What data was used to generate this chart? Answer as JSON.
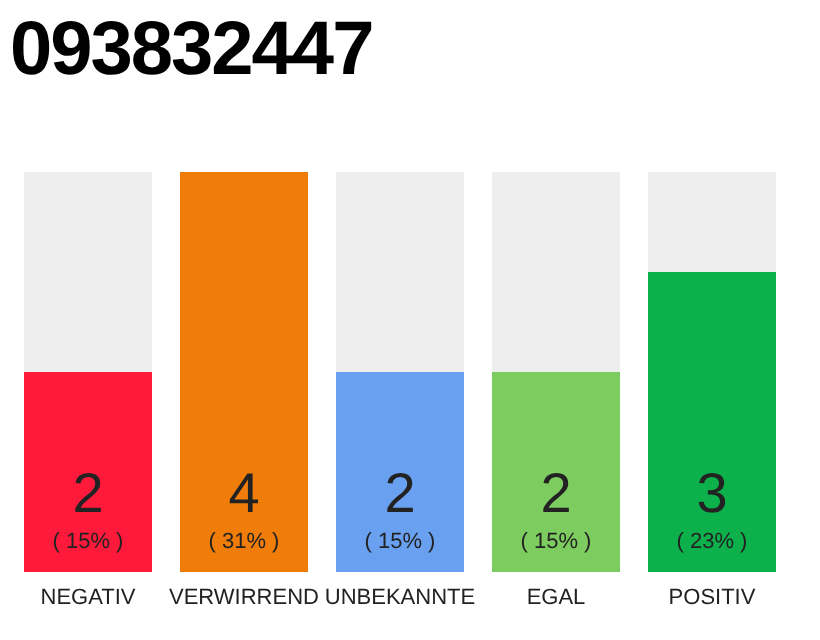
{
  "chart_data": {
    "type": "bar",
    "title": "093832447",
    "categories": [
      "NEGATIV",
      "VERWIRREND",
      "UNBEKANNTE",
      "EGAL",
      "POSITIV"
    ],
    "values": [
      2,
      4,
      2,
      2,
      3
    ],
    "colors": [
      "#ff1a3c",
      "#f07d0a",
      "#6aa0f0",
      "#7dcc5f",
      "#0db14b"
    ],
    "value_labels": [
      "2\n( 15% )",
      "4\n( 31% )",
      "2\n( 15% )",
      "2\n( 15% )",
      "3\n( 23% )"
    ]
  }
}
